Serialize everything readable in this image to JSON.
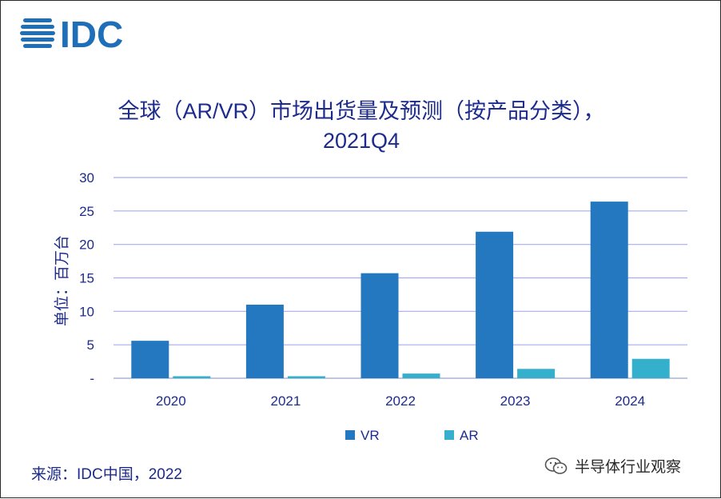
{
  "logo": {
    "text": "IDC"
  },
  "title": {
    "line1": "全球（AR/VR）市场出货量及预测（按产品分类），",
    "line2": "2021Q4"
  },
  "ylabel": "单位：百万台",
  "source": "来源：IDC中国，2022",
  "watermark": {
    "text": "半导体行业观察",
    "icon": "wechat-icon"
  },
  "colors": {
    "title": "#1c2b8c",
    "grid": "#a9acf0",
    "vr": "#2378bf",
    "ar": "#35b0cc"
  },
  "chart_data": {
    "type": "bar",
    "categories": [
      "2020",
      "2021",
      "2022",
      "2023",
      "2024"
    ],
    "series": [
      {
        "name": "VR",
        "values": [
          5.6,
          11.0,
          15.7,
          21.9,
          26.4
        ]
      },
      {
        "name": "AR",
        "values": [
          0.3,
          0.3,
          0.7,
          1.4,
          2.9
        ]
      }
    ],
    "yticks": [
      "-",
      "5",
      "10",
      "15",
      "20",
      "25",
      "30"
    ],
    "ylim": [
      0,
      30
    ],
    "grid": true,
    "legend_position": "bottom"
  }
}
